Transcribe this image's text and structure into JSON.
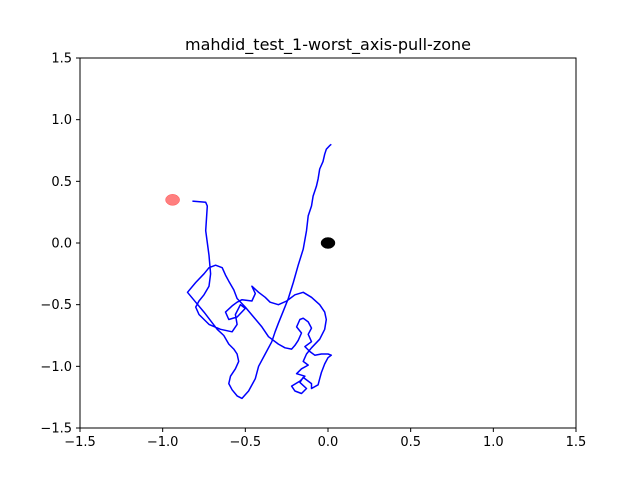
{
  "chart_data": {
    "type": "line",
    "title": "mahdid_test_1-worst_axis-pull-zone",
    "xlabel": "",
    "ylabel": "",
    "xlim": [
      -1.5,
      1.5
    ],
    "ylim": [
      -1.5,
      1.5
    ],
    "grid": false,
    "x_ticks": [
      -1.5,
      -1.0,
      -0.5,
      0.0,
      0.5,
      1.0,
      1.5
    ],
    "y_ticks": [
      -1.5,
      -1.0,
      -0.5,
      0.0,
      0.5,
      1.0,
      1.5
    ],
    "x_tick_labels": [
      "−1.5",
      "−1.0",
      "−0.5",
      "0.0",
      "0.5",
      "1.0",
      "1.5"
    ],
    "y_tick_labels": [
      "−1.5",
      "−1.0",
      "−0.5",
      "0.0",
      "0.5",
      "1.0",
      "1.5"
    ],
    "colors": {
      "trajectory": "#0000ff",
      "start_marker": "#ff7f7f",
      "end_marker": "#000000"
    },
    "markers": [
      {
        "role": "start",
        "x": -0.94,
        "y": 0.35
      },
      {
        "role": "end",
        "x": 0.0,
        "y": 0.0
      }
    ],
    "series": [
      {
        "x": [
          -0.82,
          -0.74,
          -0.73,
          -0.74,
          -0.72,
          -0.71,
          -0.72,
          -0.75,
          -0.78,
          -0.8,
          -0.78,
          -0.72,
          -0.65,
          -0.58,
          -0.55,
          -0.56,
          -0.53,
          -0.5,
          -0.55,
          -0.6,
          -0.62,
          -0.58,
          -0.55,
          -0.52,
          -0.46,
          -0.44,
          -0.46,
          -0.42,
          -0.38,
          -0.35,
          -0.3,
          -0.25,
          -0.2,
          -0.15,
          -0.1,
          -0.05,
          -0.02,
          -0.01,
          -0.02,
          -0.05,
          -0.1,
          -0.13,
          -0.15,
          -0.12,
          -0.16,
          -0.19,
          -0.14,
          -0.17,
          -0.22,
          -0.2,
          -0.16,
          -0.13,
          -0.17,
          -0.15,
          -0.1,
          -0.1,
          -0.06,
          -0.05,
          -0.04,
          -0.02,
          0.0,
          0.02,
          0.0,
          -0.04,
          -0.08,
          -0.11,
          -0.14,
          -0.1,
          -0.12,
          -0.1,
          -0.12,
          -0.15,
          -0.17,
          -0.19,
          -0.16,
          -0.18,
          -0.2,
          -0.22,
          -0.26,
          -0.3,
          -0.36,
          -0.4,
          -0.45,
          -0.5,
          -0.55,
          -0.57,
          -0.6,
          -0.62,
          -0.64,
          -0.68,
          -0.72,
          -0.75,
          -0.8,
          -0.85,
          -0.8,
          -0.75,
          -0.71,
          -0.67,
          -0.63,
          -0.6,
          -0.57,
          -0.55,
          -0.54,
          -0.56,
          -0.59,
          -0.6,
          -0.58,
          -0.55,
          -0.52,
          -0.48,
          -0.44,
          -0.42,
          -0.38,
          -0.34,
          -0.32,
          -0.3,
          -0.27,
          -0.24,
          -0.21,
          -0.18,
          -0.15,
          -0.13,
          -0.12,
          -0.1,
          -0.09,
          -0.07,
          -0.06,
          -0.05,
          -0.03,
          -0.02,
          -0.01,
          0.01,
          0.02
        ],
        "y": [
          0.34,
          0.33,
          0.3,
          0.1,
          -0.1,
          -0.25,
          -0.35,
          -0.42,
          -0.47,
          -0.52,
          -0.58,
          -0.66,
          -0.7,
          -0.72,
          -0.66,
          -0.58,
          -0.5,
          -0.53,
          -0.6,
          -0.62,
          -0.56,
          -0.51,
          -0.48,
          -0.46,
          -0.47,
          -0.41,
          -0.35,
          -0.4,
          -0.44,
          -0.48,
          -0.5,
          -0.47,
          -0.42,
          -0.4,
          -0.44,
          -0.5,
          -0.56,
          -0.62,
          -0.7,
          -0.78,
          -0.85,
          -0.9,
          -0.96,
          -0.99,
          -1.02,
          -1.06,
          -1.08,
          -1.12,
          -1.16,
          -1.2,
          -1.22,
          -1.18,
          -1.13,
          -1.09,
          -1.14,
          -1.18,
          -1.15,
          -1.1,
          -1.05,
          -0.98,
          -0.93,
          -0.91,
          -0.9,
          -0.9,
          -0.91,
          -0.88,
          -0.84,
          -0.8,
          -0.74,
          -0.69,
          -0.64,
          -0.61,
          -0.62,
          -0.68,
          -0.73,
          -0.79,
          -0.83,
          -0.86,
          -0.85,
          -0.82,
          -0.76,
          -0.68,
          -0.6,
          -0.52,
          -0.45,
          -0.38,
          -0.31,
          -0.26,
          -0.2,
          -0.18,
          -0.2,
          -0.25,
          -0.32,
          -0.4,
          -0.48,
          -0.56,
          -0.63,
          -0.7,
          -0.75,
          -0.82,
          -0.86,
          -0.9,
          -0.96,
          -1.02,
          -1.08,
          -1.14,
          -1.19,
          -1.24,
          -1.26,
          -1.2,
          -1.1,
          -1.0,
          -0.9,
          -0.8,
          -0.72,
          -0.65,
          -0.55,
          -0.45,
          -0.32,
          -0.18,
          -0.05,
          0.1,
          0.22,
          0.3,
          0.38,
          0.46,
          0.52,
          0.6,
          0.66,
          0.72,
          0.76,
          0.79,
          0.8
        ]
      }
    ]
  }
}
